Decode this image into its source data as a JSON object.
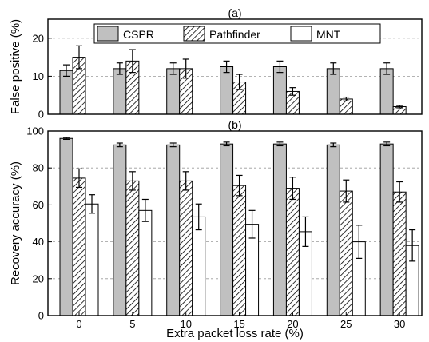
{
  "chart_data": [
    {
      "type": "bar",
      "panel_title": "(a)",
      "ylabel": "False positive (%)",
      "xlabel": "",
      "ylim": [
        0,
        25
      ],
      "yticks": [
        0,
        10,
        20
      ],
      "grid": "horizontal dashed",
      "legend_position": "top-center",
      "categories": [
        "0",
        "5",
        "10",
        "15",
        "20",
        "25",
        "30"
      ],
      "series": [
        {
          "name": "CSPR",
          "values": [
            11.5,
            12,
            12,
            12.5,
            12.5,
            12,
            12
          ],
          "errors": [
            1.5,
            1.5,
            1.5,
            1.5,
            1.5,
            1.5,
            1.5
          ]
        },
        {
          "name": "Pathfinder",
          "values": [
            15,
            14,
            12,
            8.5,
            6,
            4,
            2
          ],
          "errors": [
            3,
            3,
            2.5,
            2,
            1,
            0.5,
            0.3
          ]
        }
      ],
      "legend": [
        "CSPR",
        "Pathfinder",
        "MNT"
      ]
    },
    {
      "type": "bar",
      "panel_title": "(b)",
      "ylabel": "Recovery accuracy (%)",
      "xlabel": "Extra packet loss rate (%)",
      "ylim": [
        0,
        100
      ],
      "yticks": [
        0,
        20,
        40,
        60,
        80,
        100
      ],
      "grid": "horizontal dashed",
      "categories": [
        "0",
        "5",
        "10",
        "15",
        "20",
        "25",
        "30"
      ],
      "series": [
        {
          "name": "CSPR",
          "values": [
            96,
            92.5,
            92.5,
            93,
            93,
            92.5,
            93
          ],
          "errors": [
            0.5,
            1,
            1,
            1,
            1,
            1,
            1
          ]
        },
        {
          "name": "Pathfinder",
          "values": [
            74.5,
            73,
            73,
            70.5,
            69,
            67.5,
            67
          ],
          "errors": [
            5,
            5,
            5,
            5.5,
            6,
            6,
            5.5
          ]
        },
        {
          "name": "MNT",
          "values": [
            60.5,
            57,
            53.5,
            49.5,
            45.5,
            40,
            38
          ],
          "errors": [
            5,
            6,
            7,
            7.5,
            8,
            9,
            8.5
          ]
        }
      ]
    }
  ]
}
